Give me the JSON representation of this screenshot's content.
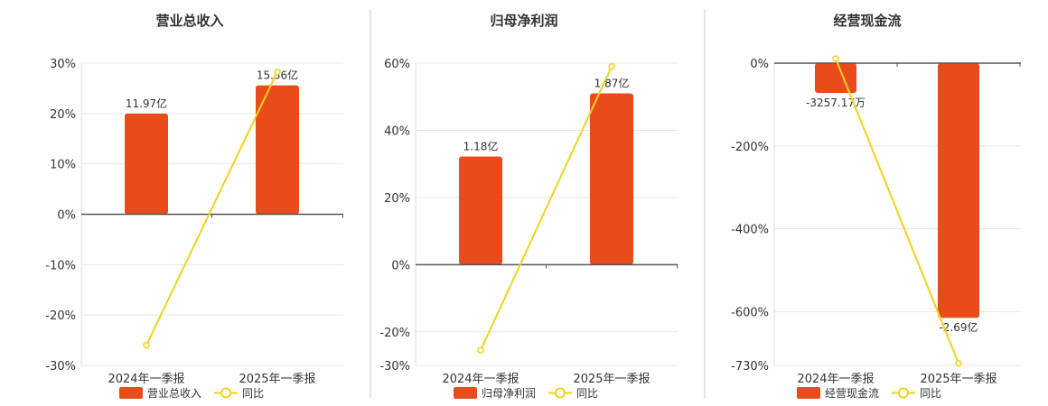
{
  "colors": {
    "bar": "#e84c1b",
    "line": "#f2d21c",
    "divider": "#cccccc",
    "grid": "#e6e6e6",
    "axis": "#555555"
  },
  "chart_data": [
    {
      "type": "bar",
      "title": "营业总收入",
      "categories": [
        "2024年一季报",
        "2025年一季报"
      ],
      "series": [
        {
          "name": "营业总收入",
          "type": "bar",
          "values": [
            20,
            25.6
          ],
          "labels": [
            "11.97亿",
            "15.36亿"
          ]
        },
        {
          "name": "同比",
          "type": "line",
          "values": [
            -26,
            28.3
          ]
        }
      ],
      "yticks": [
        30,
        20,
        10,
        0,
        -10,
        -20,
        -30
      ],
      "ytick_labels": [
        "30%",
        "20%",
        "10%",
        "0%",
        "-10%",
        "-20%",
        "-30%"
      ],
      "ylim": [
        -30,
        30
      ],
      "label_position": "above",
      "legend": "bottom",
      "grid": true
    },
    {
      "type": "bar",
      "title": "归母净利润",
      "categories": [
        "2024年一季报",
        "2025年一季报"
      ],
      "series": [
        {
          "name": "归母净利润",
          "type": "bar",
          "values": [
            32.2,
            51
          ],
          "labels": [
            "1.18亿",
            "1.87亿"
          ]
        },
        {
          "name": "同比",
          "type": "line",
          "values": [
            -25.5,
            59
          ]
        }
      ],
      "yticks": [
        60,
        40,
        20,
        0,
        -20,
        -30
      ],
      "ytick_labels": [
        "60%",
        "40%",
        "20%",
        "0%",
        "-20%",
        "-30%"
      ],
      "ylim": [
        -30,
        60
      ],
      "label_position": "above",
      "legend": "bottom",
      "grid": true
    },
    {
      "type": "bar",
      "title": "经营现金流",
      "categories": [
        "2024年一季报",
        "2025年一季报"
      ],
      "series": [
        {
          "name": "经营现金流",
          "type": "bar",
          "values": [
            -72,
            -615
          ],
          "labels": [
            "-3257.17万",
            "-2.69亿"
          ]
        },
        {
          "name": "同比",
          "type": "line",
          "values": [
            11,
            -725
          ]
        }
      ],
      "yticks": [
        0,
        -200,
        -400,
        -600,
        -730
      ],
      "ytick_labels": [
        "0%",
        "-200%",
        "-400%",
        "-600%",
        "-730%"
      ],
      "ylim": [
        -730,
        0
      ],
      "label_position": "below",
      "legend": "bottom",
      "grid": true
    }
  ]
}
